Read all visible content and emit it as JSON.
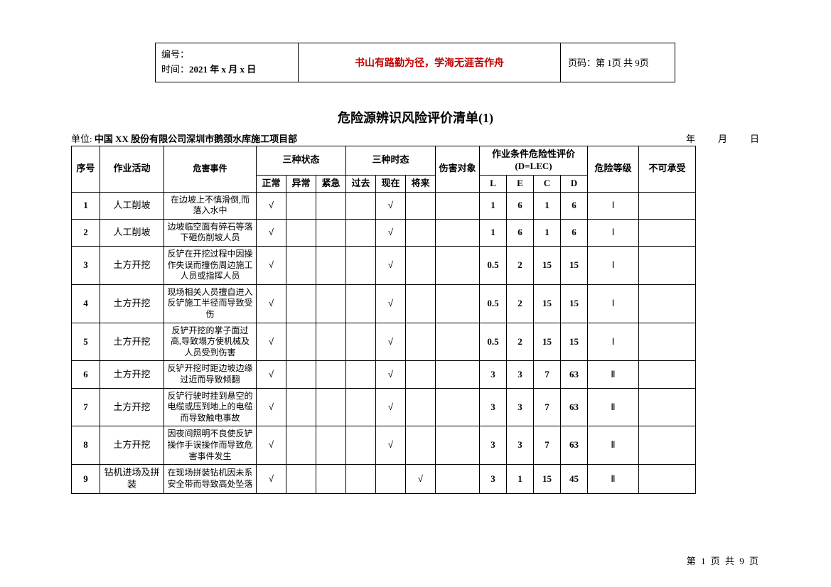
{
  "header": {
    "line1_label": "编号：",
    "line2_label": "时间：",
    "line2_value": "2021 年 x 月 x 日",
    "motto": "书山有路勤为径，学海无涯苦作舟",
    "page_label": "页码：第 1页 共 9页"
  },
  "title": "危险源辨识风险评价清单(1)",
  "unit_label": "单位:",
  "unit_value": "中国 XX 股份有限公司深圳市鹅颈水库施工项目部",
  "date_fields": "年　　月　　日",
  "columns": {
    "seq": "序号",
    "activity": "作业活动",
    "event": "危害事件",
    "state_group": "三种状态",
    "state_normal": "正常",
    "state_abnormal": "异常",
    "state_urgent": "紧急",
    "time_group": "三种时态",
    "time_past": "过去",
    "time_now": "现在",
    "time_future": "将来",
    "target": "伤害对象",
    "lec_group": "作业条件危险性评价(D=LEC)",
    "L": "L",
    "E": "E",
    "C": "C",
    "D": "D",
    "level": "危险等级",
    "accept": "不可承受"
  },
  "check": "√",
  "rows": [
    {
      "seq": "1",
      "activity": "人工削坡",
      "event": "在边坡上不慎滑倒,而落入水中",
      "normal": true,
      "now": true,
      "future": false,
      "L": "1",
      "E": "6",
      "C": "1",
      "D": "6",
      "level": "Ⅰ"
    },
    {
      "seq": "2",
      "activity": "人工削坡",
      "event": "边坡临空面有碎石等落下砸伤削坡人员",
      "normal": true,
      "now": true,
      "future": false,
      "L": "1",
      "E": "6",
      "C": "1",
      "D": "6",
      "level": "Ⅰ"
    },
    {
      "seq": "3",
      "activity": "土方开挖",
      "event": "反铲在开挖过程中因操作失误而撞伤周边施工人员或指挥人员",
      "normal": true,
      "now": true,
      "future": false,
      "L": "0.5",
      "E": "2",
      "C": "15",
      "D": "15",
      "level": "Ⅰ"
    },
    {
      "seq": "4",
      "activity": "土方开挖",
      "event": "现场相关人员擅自进入反铲施工半径而导致受伤",
      "normal": true,
      "now": true,
      "future": false,
      "L": "0.5",
      "E": "2",
      "C": "15",
      "D": "15",
      "level": "Ⅰ"
    },
    {
      "seq": "5",
      "activity": "土方开挖",
      "event": "反铲开挖的掌子面过高,导致塌方使机械及人员受到伤害",
      "normal": true,
      "now": true,
      "future": false,
      "L": "0.5",
      "E": "2",
      "C": "15",
      "D": "15",
      "level": "Ⅰ"
    },
    {
      "seq": "6",
      "activity": "土方开挖",
      "event": "反铲开挖时距边坡边缘过近而导致倾翻",
      "normal": true,
      "now": true,
      "future": false,
      "L": "3",
      "E": "3",
      "C": "7",
      "D": "63",
      "level": "Ⅱ"
    },
    {
      "seq": "7",
      "activity": "土方开挖",
      "event": "反铲行驶时挂到悬空的电缆或压到地上的电缆而导致触电事故",
      "normal": true,
      "now": true,
      "future": false,
      "L": "3",
      "E": "3",
      "C": "7",
      "D": "63",
      "level": "Ⅱ"
    },
    {
      "seq": "8",
      "activity": "土方开挖",
      "event": "因夜间照明不良使反铲操作手误操作而导致危害事件发生",
      "normal": true,
      "now": true,
      "future": false,
      "L": "3",
      "E": "3",
      "C": "7",
      "D": "63",
      "level": "Ⅱ"
    },
    {
      "seq": "9",
      "activity": "钻机进场及拼装",
      "event": "在现场拼装钻机因未系安全带而导致高处坠落",
      "normal": true,
      "now": false,
      "future": true,
      "L": "3",
      "E": "1",
      "C": "15",
      "D": "45",
      "level": "Ⅱ"
    }
  ],
  "footer": "第 1 页 共 9 页"
}
